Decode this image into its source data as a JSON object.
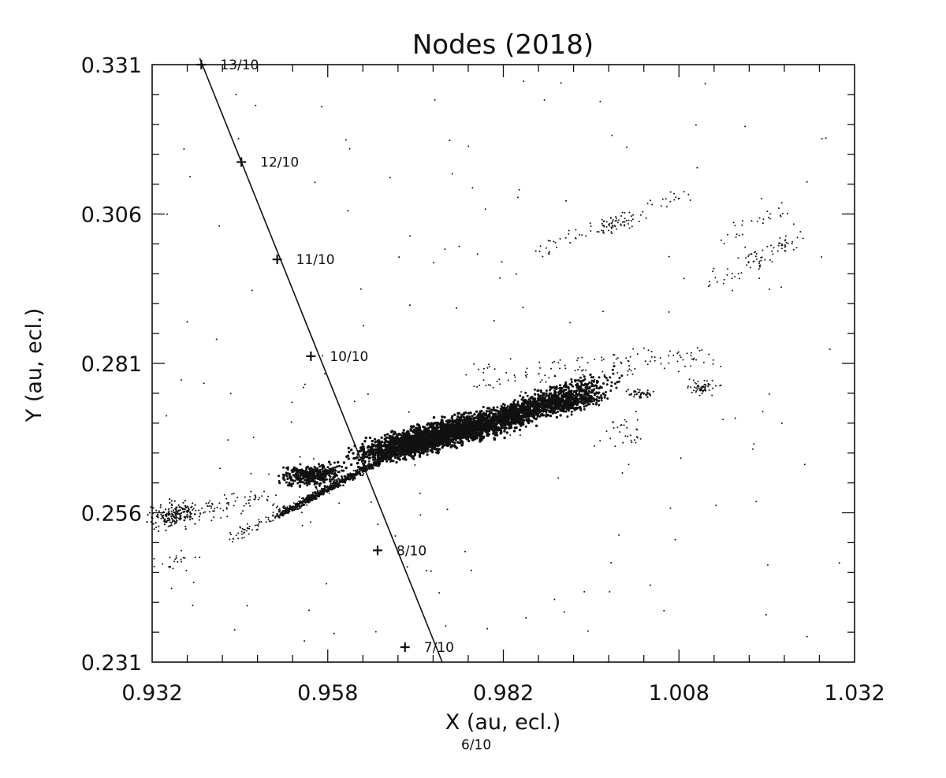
{
  "chart_data": {
    "type": "scatter",
    "title": "Nodes (2018)",
    "xlabel": "X (au, ecl.)",
    "ylabel": "Y (au, ecl.)",
    "xlim": [
      0.932,
      1.032
    ],
    "ylim": [
      0.231,
      0.331
    ],
    "x_ticks": [
      "0.932",
      "0.958",
      "0.982",
      "1.008",
      "1.032"
    ],
    "y_ticks": [
      "0.331",
      "0.306",
      "0.281",
      "0.256",
      "0.231"
    ],
    "grid": false,
    "earth_track": {
      "points": [
        {
          "x": 0.939,
          "y": 0.331,
          "label": "13/10"
        },
        {
          "x": 0.9447,
          "y": 0.3147,
          "label": "12/10"
        },
        {
          "x": 0.9498,
          "y": 0.2984,
          "label": "11/10"
        },
        {
          "x": 0.9546,
          "y": 0.2822,
          "label": "10/10"
        },
        {
          "x": 0.9641,
          "y": 0.2497,
          "label": "8/10"
        },
        {
          "x": 0.968,
          "y": 0.2335,
          "label": "7/10"
        },
        {
          "x": 0.9733,
          "y": 0.2172,
          "label": "6/10"
        }
      ]
    },
    "node_clusters": [
      {
        "x": 0.9774,
        "y": 0.2661
      },
      {
        "x": 0.982,
        "y": 0.2676
      },
      {
        "x": 0.987,
        "y": 0.2706
      },
      {
        "x": 0.9511,
        "y": 0.2602
      },
      {
        "x": 0.935,
        "y": 0.2555
      },
      {
        "x": 0.9572,
        "y": 0.2612
      },
      {
        "x": 0.996,
        "y": 0.2715
      },
      {
        "x": 1.0073,
        "y": 0.2728
      },
      {
        "x": 0.995,
        "y": 0.303
      },
      {
        "x": 1.015,
        "y": 0.297
      }
    ]
  }
}
